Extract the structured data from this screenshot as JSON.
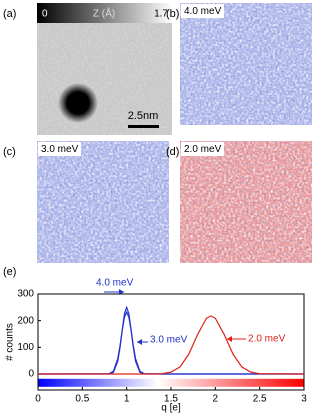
{
  "panels": [
    {
      "label": "(a)",
      "colorbar_min": "0",
      "colorbar_label": "Z (Å)",
      "colorbar_max": "1.7",
      "scale_bar": "2.5nm"
    },
    {
      "label": "(b)",
      "energy": "4.0 meV",
      "tone": "#aeb8ee"
    },
    {
      "label": "(c)",
      "energy": "3.0 meV",
      "tone": "#aeb8ee"
    },
    {
      "label": "(d)",
      "energy": "2.0 meV",
      "tone": "#ee9a9a"
    }
  ],
  "chart_data": {
    "type": "line",
    "label": "(e)",
    "x_label": "q [e]",
    "y_label": "# counts",
    "x": [
      0,
      0.8,
      0.85,
      0.9,
      0.925,
      0.95,
      0.975,
      1,
      1.025,
      1.05,
      1.075,
      1.1,
      1.15,
      1.2,
      1.4,
      1.5,
      1.6,
      1.7,
      1.8,
      1.9,
      1.95,
      2,
      2.1,
      2.2,
      2.3,
      2.4,
      2.5,
      3
    ],
    "series": [
      {
        "name": "4.0 meV",
        "color": "#2233cc",
        "values": [
          0,
          0,
          6,
          48,
          99,
          166,
          226,
          250,
          226,
          166,
          99,
          48,
          6,
          0,
          0,
          0,
          0,
          0,
          0,
          0,
          0,
          0,
          0,
          0,
          0,
          0,
          0,
          0
        ]
      },
      {
        "name": "3.0 meV",
        "color": "#2233cc",
        "values": [
          0,
          1,
          10,
          58,
          106,
          164,
          213,
          232,
          213,
          164,
          106,
          58,
          10,
          1,
          0,
          0,
          0,
          0,
          0,
          0,
          0,
          0,
          0,
          0,
          0,
          0,
          0,
          0
        ]
      },
      {
        "name": "2.0 meV",
        "color": "#e0201a",
        "values": [
          0,
          0,
          0,
          0,
          0,
          0,
          0,
          0,
          0,
          0,
          0,
          0,
          0,
          0,
          1,
          7,
          26,
          74,
          148,
          209,
          218,
          209,
          148,
          74,
          26,
          7,
          1,
          0
        ]
      }
    ],
    "xlim": [
      0,
      3
    ],
    "xticks": [
      0,
      0.5,
      1,
      1.5,
      2,
      2.5,
      3
    ],
    "ylim": [
      -60,
      300
    ],
    "yticks": [
      0,
      100,
      200,
      300
    ]
  }
}
